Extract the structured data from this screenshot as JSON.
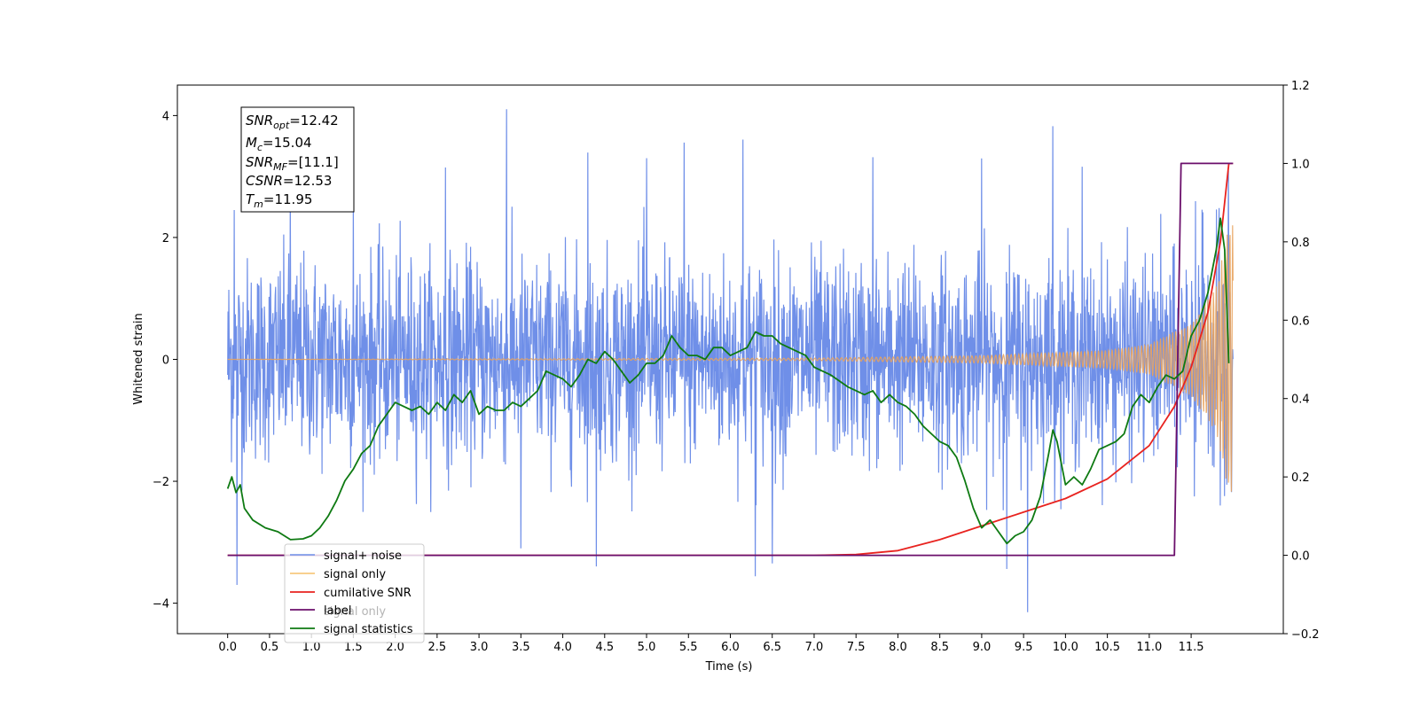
{
  "chart_data": {
    "type": "line",
    "xlabel": "Time (s)",
    "ylabel": "Whitened strain",
    "xlim": [
      -0.6,
      12.6
    ],
    "ylim": [
      -4.5,
      4.5
    ],
    "y2lim": [
      -0.2,
      1.2
    ],
    "xticks": [
      "0.0",
      "0.5",
      "1.0",
      "1.5",
      "2.0",
      "2.5",
      "3.0",
      "3.5",
      "4.0",
      "4.5",
      "5.0",
      "5.5",
      "6.0",
      "6.5",
      "7.0",
      "7.5",
      "8.0",
      "8.5",
      "9.0",
      "9.5",
      "10.0",
      "10.5",
      "11.0",
      "11.5"
    ],
    "yticks": [
      "−4",
      "−2",
      "0",
      "2",
      "4"
    ],
    "y2ticks": [
      "−0.2",
      "0.0",
      "0.2",
      "0.4",
      "0.6",
      "0.8",
      "1.0",
      "1.2"
    ],
    "legend": {
      "placement": "lower-left",
      "entries": [
        "signal+ noise",
        "signal only",
        "cumilative SNR",
        "label",
        "signal statistics"
      ],
      "ghost_text": "signal only"
    },
    "info_box": {
      "lines": [
        {
          "main": "SNR",
          "sub": "opt",
          "value": "=12.42"
        },
        {
          "main": "M",
          "sub": "c",
          "value": "=15.04"
        },
        {
          "main": "SNR",
          "sub": "MF",
          "value": "=[11.1]"
        },
        {
          "main": "CSNR",
          "sub": "",
          "value": "=12.53"
        },
        {
          "main": "T",
          "sub": "m",
          "value": "=11.95"
        }
      ]
    },
    "series": [
      {
        "name": "signal+ noise",
        "axis": "left",
        "color": "#6f8fe8",
        "x_range": [
          0.0,
          12.0
        ],
        "amplitude_typical": 1.2,
        "peaks": [
          {
            "x": 0.08,
            "y": 2.45
          },
          {
            "x": 0.11,
            "y": -3.7
          },
          {
            "x": 0.75,
            "y": 2.75
          },
          {
            "x": 1.5,
            "y": 2.7
          },
          {
            "x": 2.6,
            "y": 3.15
          },
          {
            "x": 3.33,
            "y": 4.1
          },
          {
            "x": 3.5,
            "y": -3.1
          },
          {
            "x": 4.3,
            "y": 3.4
          },
          {
            "x": 4.4,
            "y": -3.4
          },
          {
            "x": 5.0,
            "y": 3.3
          },
          {
            "x": 5.45,
            "y": 3.55
          },
          {
            "x": 6.15,
            "y": 3.6
          },
          {
            "x": 6.3,
            "y": -3.55
          },
          {
            "x": 6.5,
            "y": -3.35
          },
          {
            "x": 7.7,
            "y": 3.3
          },
          {
            "x": 9.0,
            "y": 3.3
          },
          {
            "x": 9.3,
            "y": -3.4
          },
          {
            "x": 9.55,
            "y": -4.1
          },
          {
            "x": 9.85,
            "y": 3.85
          },
          {
            "x": 10.2,
            "y": 3.1
          },
          {
            "x": 11.55,
            "y": 2.9
          },
          {
            "x": 11.8,
            "y": 3.0
          },
          {
            "x": 11.9,
            "y": -2.9
          }
        ]
      },
      {
        "name": "signal only",
        "axis": "left",
        "color": "#e8a35e",
        "x_range": [
          0.0,
          12.0
        ],
        "envelope": [
          {
            "x": 0.0,
            "y": 0.0
          },
          {
            "x": 7.0,
            "y": 0.02
          },
          {
            "x": 9.0,
            "y": 0.06
          },
          {
            "x": 10.5,
            "y": 0.15
          },
          {
            "x": 11.0,
            "y": 0.25
          },
          {
            "x": 11.5,
            "y": 0.6
          },
          {
            "x": 11.8,
            "y": 1.2
          },
          {
            "x": 11.95,
            "y": 2.2
          }
        ]
      },
      {
        "name": "cumilative SNR",
        "axis": "right",
        "color": "#e8231f",
        "points": [
          {
            "x": 0.0,
            "y": 0.0
          },
          {
            "x": 7.0,
            "y": 0.0
          },
          {
            "x": 7.5,
            "y": 0.002
          },
          {
            "x": 8.0,
            "y": 0.012
          },
          {
            "x": 8.5,
            "y": 0.04
          },
          {
            "x": 9.0,
            "y": 0.075
          },
          {
            "x": 9.5,
            "y": 0.11
          },
          {
            "x": 10.0,
            "y": 0.145
          },
          {
            "x": 10.5,
            "y": 0.195
          },
          {
            "x": 11.0,
            "y": 0.28
          },
          {
            "x": 11.3,
            "y": 0.38
          },
          {
            "x": 11.5,
            "y": 0.48
          },
          {
            "x": 11.7,
            "y": 0.62
          },
          {
            "x": 11.85,
            "y": 0.8
          },
          {
            "x": 11.95,
            "y": 1.0
          },
          {
            "x": 12.0,
            "y": 1.0
          }
        ]
      },
      {
        "name": "label",
        "axis": "right",
        "color": "#6b0f6b",
        "points": [
          {
            "x": 0.0,
            "y": 0.0
          },
          {
            "x": 11.3,
            "y": 0.0
          },
          {
            "x": 11.38,
            "y": 1.0
          },
          {
            "x": 12.0,
            "y": 1.0
          }
        ]
      },
      {
        "name": "signal statistics",
        "axis": "right",
        "color": "#0e7a12",
        "points": [
          {
            "x": 0.0,
            "y": 0.17
          },
          {
            "x": 0.05,
            "y": 0.2
          },
          {
            "x": 0.1,
            "y": 0.16
          },
          {
            "x": 0.15,
            "y": 0.18
          },
          {
            "x": 0.2,
            "y": 0.12
          },
          {
            "x": 0.3,
            "y": 0.09
          },
          {
            "x": 0.45,
            "y": 0.07
          },
          {
            "x": 0.6,
            "y": 0.06
          },
          {
            "x": 0.75,
            "y": 0.04
          },
          {
            "x": 0.9,
            "y": 0.042
          },
          {
            "x": 1.0,
            "y": 0.05
          },
          {
            "x": 1.1,
            "y": 0.07
          },
          {
            "x": 1.2,
            "y": 0.1
          },
          {
            "x": 1.3,
            "y": 0.14
          },
          {
            "x": 1.4,
            "y": 0.19
          },
          {
            "x": 1.5,
            "y": 0.22
          },
          {
            "x": 1.6,
            "y": 0.26
          },
          {
            "x": 1.7,
            "y": 0.28
          },
          {
            "x": 1.8,
            "y": 0.33
          },
          {
            "x": 1.9,
            "y": 0.36
          },
          {
            "x": 2.0,
            "y": 0.39
          },
          {
            "x": 2.1,
            "y": 0.38
          },
          {
            "x": 2.2,
            "y": 0.37
          },
          {
            "x": 2.3,
            "y": 0.38
          },
          {
            "x": 2.4,
            "y": 0.36
          },
          {
            "x": 2.5,
            "y": 0.39
          },
          {
            "x": 2.6,
            "y": 0.37
          },
          {
            "x": 2.7,
            "y": 0.41
          },
          {
            "x": 2.8,
            "y": 0.39
          },
          {
            "x": 2.9,
            "y": 0.42
          },
          {
            "x": 3.0,
            "y": 0.36
          },
          {
            "x": 3.1,
            "y": 0.38
          },
          {
            "x": 3.2,
            "y": 0.37
          },
          {
            "x": 3.3,
            "y": 0.37
          },
          {
            "x": 3.4,
            "y": 0.39
          },
          {
            "x": 3.5,
            "y": 0.38
          },
          {
            "x": 3.6,
            "y": 0.4
          },
          {
            "x": 3.7,
            "y": 0.42
          },
          {
            "x": 3.8,
            "y": 0.47
          },
          {
            "x": 3.9,
            "y": 0.46
          },
          {
            "x": 4.0,
            "y": 0.45
          },
          {
            "x": 4.1,
            "y": 0.43
          },
          {
            "x": 4.2,
            "y": 0.46
          },
          {
            "x": 4.3,
            "y": 0.5
          },
          {
            "x": 4.4,
            "y": 0.49
          },
          {
            "x": 4.5,
            "y": 0.52
          },
          {
            "x": 4.6,
            "y": 0.5
          },
          {
            "x": 4.7,
            "y": 0.47
          },
          {
            "x": 4.8,
            "y": 0.44
          },
          {
            "x": 4.9,
            "y": 0.46
          },
          {
            "x": 5.0,
            "y": 0.49
          },
          {
            "x": 5.1,
            "y": 0.49
          },
          {
            "x": 5.2,
            "y": 0.51
          },
          {
            "x": 5.3,
            "y": 0.56
          },
          {
            "x": 5.4,
            "y": 0.53
          },
          {
            "x": 5.5,
            "y": 0.51
          },
          {
            "x": 5.6,
            "y": 0.51
          },
          {
            "x": 5.7,
            "y": 0.5
          },
          {
            "x": 5.8,
            "y": 0.53
          },
          {
            "x": 5.9,
            "y": 0.53
          },
          {
            "x": 6.0,
            "y": 0.51
          },
          {
            "x": 6.1,
            "y": 0.52
          },
          {
            "x": 6.2,
            "y": 0.53
          },
          {
            "x": 6.3,
            "y": 0.57
          },
          {
            "x": 6.4,
            "y": 0.56
          },
          {
            "x": 6.5,
            "y": 0.56
          },
          {
            "x": 6.6,
            "y": 0.54
          },
          {
            "x": 6.7,
            "y": 0.53
          },
          {
            "x": 6.8,
            "y": 0.52
          },
          {
            "x": 6.9,
            "y": 0.51
          },
          {
            "x": 7.0,
            "y": 0.48
          },
          {
            "x": 7.2,
            "y": 0.46
          },
          {
            "x": 7.4,
            "y": 0.43
          },
          {
            "x": 7.6,
            "y": 0.41
          },
          {
            "x": 7.7,
            "y": 0.42
          },
          {
            "x": 7.8,
            "y": 0.39
          },
          {
            "x": 7.9,
            "y": 0.41
          },
          {
            "x": 8.0,
            "y": 0.39
          },
          {
            "x": 8.1,
            "y": 0.38
          },
          {
            "x": 8.2,
            "y": 0.36
          },
          {
            "x": 8.3,
            "y": 0.33
          },
          {
            "x": 8.4,
            "y": 0.31
          },
          {
            "x": 8.5,
            "y": 0.29
          },
          {
            "x": 8.6,
            "y": 0.28
          },
          {
            "x": 8.7,
            "y": 0.25
          },
          {
            "x": 8.8,
            "y": 0.19
          },
          {
            "x": 8.9,
            "y": 0.12
          },
          {
            "x": 9.0,
            "y": 0.07
          },
          {
            "x": 9.1,
            "y": 0.09
          },
          {
            "x": 9.2,
            "y": 0.06
          },
          {
            "x": 9.3,
            "y": 0.03
          },
          {
            "x": 9.4,
            "y": 0.05
          },
          {
            "x": 9.5,
            "y": 0.06
          },
          {
            "x": 9.6,
            "y": 0.09
          },
          {
            "x": 9.7,
            "y": 0.15
          },
          {
            "x": 9.8,
            "y": 0.26
          },
          {
            "x": 9.85,
            "y": 0.32
          },
          {
            "x": 9.9,
            "y": 0.29
          },
          {
            "x": 10.0,
            "y": 0.18
          },
          {
            "x": 10.1,
            "y": 0.2
          },
          {
            "x": 10.2,
            "y": 0.18
          },
          {
            "x": 10.3,
            "y": 0.22
          },
          {
            "x": 10.4,
            "y": 0.27
          },
          {
            "x": 10.5,
            "y": 0.28
          },
          {
            "x": 10.6,
            "y": 0.29
          },
          {
            "x": 10.7,
            "y": 0.31
          },
          {
            "x": 10.8,
            "y": 0.38
          },
          {
            "x": 10.9,
            "y": 0.41
          },
          {
            "x": 11.0,
            "y": 0.39
          },
          {
            "x": 11.1,
            "y": 0.43
          },
          {
            "x": 11.2,
            "y": 0.46
          },
          {
            "x": 11.3,
            "y": 0.45
          },
          {
            "x": 11.4,
            "y": 0.47
          },
          {
            "x": 11.5,
            "y": 0.56
          },
          {
            "x": 11.6,
            "y": 0.6
          },
          {
            "x": 11.7,
            "y": 0.67
          },
          {
            "x": 11.8,
            "y": 0.78
          },
          {
            "x": 11.85,
            "y": 0.86
          },
          {
            "x": 11.9,
            "y": 0.78
          },
          {
            "x": 11.95,
            "y": 0.49
          }
        ]
      }
    ]
  }
}
